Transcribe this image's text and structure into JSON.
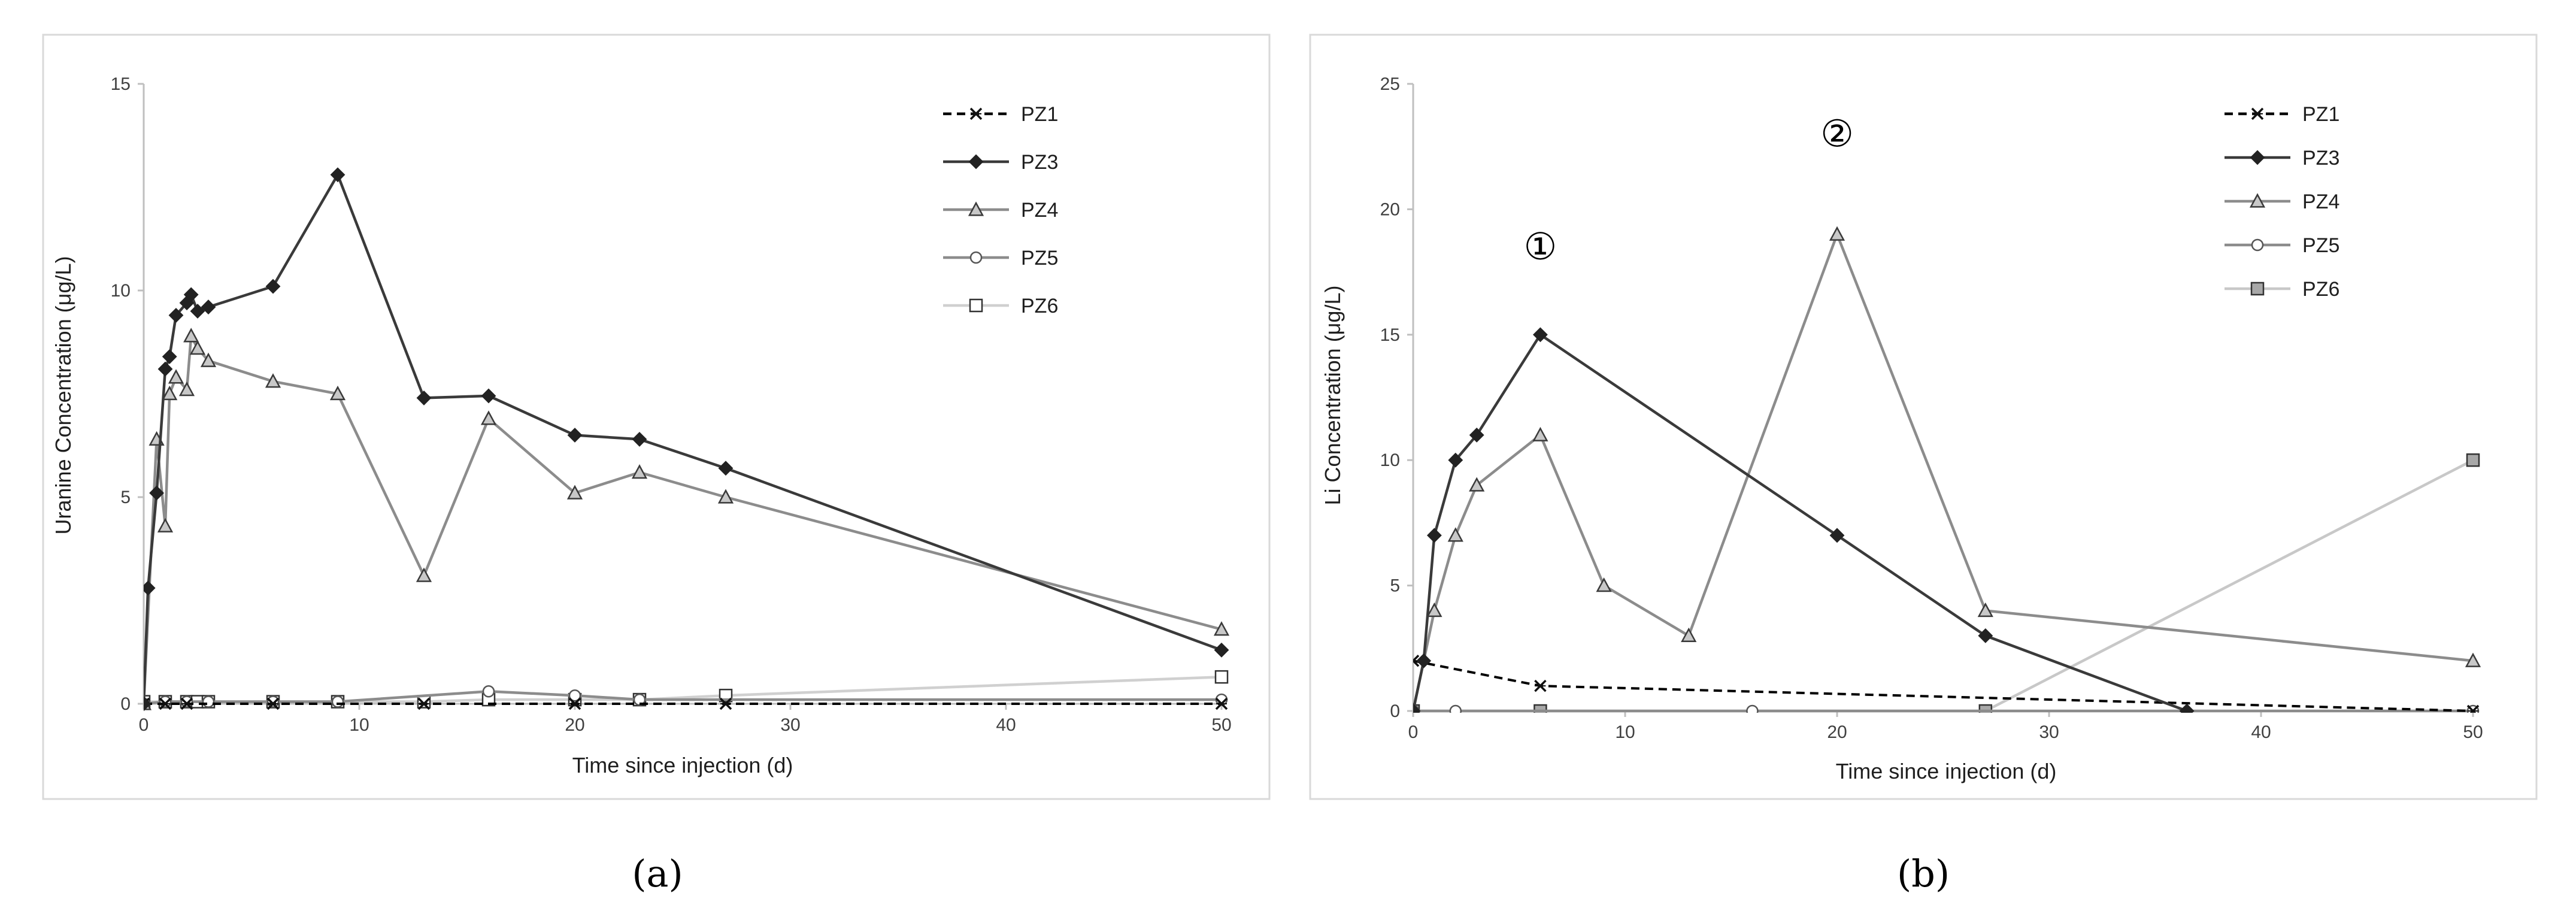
{
  "chart_data": [
    {
      "type": "line",
      "panel": "a",
      "caption": "(a)",
      "xlabel": "Time since injection (d)",
      "ylabel": "Uranine Concentration (μg/L)",
      "xlim": [
        0,
        50
      ],
      "ylim": [
        0,
        15
      ],
      "xticks": [
        "0",
        "10",
        "20",
        "30",
        "40",
        "50"
      ],
      "yticks": [
        "0",
        "5",
        "10",
        "15"
      ],
      "grid": false,
      "legend_position": "top-right",
      "annotations": [],
      "series": [
        {
          "name": "PZ1",
          "color": "#000000",
          "dash": "dashed",
          "marker": "x",
          "x": [
            0,
            1,
            2,
            6,
            13,
            20,
            27,
            50
          ],
          "y": [
            0,
            0,
            0,
            0,
            0,
            0,
            0,
            0
          ]
        },
        {
          "name": "PZ3",
          "color": "#3a3a3a",
          "dash": "solid",
          "marker": "diamond",
          "x": [
            0,
            0.2,
            0.6,
            1,
            1.2,
            1.5,
            2,
            2.2,
            2.5,
            3,
            6,
            9,
            13,
            16,
            20,
            23,
            27,
            50
          ],
          "y": [
            0,
            2.8,
            5.1,
            8.1,
            8.4,
            9.4,
            9.7,
            9.9,
            9.5,
            9.6,
            10.1,
            12.8,
            7.4,
            7.45,
            6.5,
            6.4,
            5.7,
            1.3
          ]
        },
        {
          "name": "PZ4",
          "color": "#8c8c8c",
          "dash": "solid",
          "marker": "triangle",
          "x": [
            0,
            0.6,
            1,
            1.2,
            1.5,
            2,
            2.2,
            2.5,
            3,
            6,
            9,
            13,
            16,
            20,
            23,
            27,
            50
          ],
          "y": [
            0,
            6.4,
            4.3,
            7.5,
            7.9,
            7.6,
            8.9,
            8.6,
            8.3,
            7.8,
            7.5,
            3.1,
            6.9,
            5.1,
            5.6,
            5.0,
            1.8
          ]
        },
        {
          "name": "PZ5",
          "color": "#8c8c8c",
          "dash": "solid",
          "marker": "circle",
          "x": [
            0,
            1,
            2,
            3,
            6,
            9,
            16,
            20,
            23,
            50
          ],
          "y": [
            0,
            0.05,
            0.05,
            0.05,
            0.05,
            0.05,
            0.3,
            0.2,
            0.1,
            0.1
          ]
        },
        {
          "name": "PZ6",
          "color": "#d0d0d0",
          "dash": "solid",
          "marker": "square",
          "x": [
            0,
            1,
            2,
            2.5,
            3,
            6,
            9,
            13,
            16,
            20,
            23,
            27,
            50
          ],
          "y": [
            0.05,
            0.05,
            0.05,
            0.05,
            0.05,
            0.05,
            0.05,
            0.05,
            0.1,
            0.1,
            0.1,
            0.2,
            0.65
          ]
        }
      ]
    },
    {
      "type": "line",
      "panel": "b",
      "caption": "(b)",
      "xlabel": "Time since injection (d)",
      "ylabel": "Li Concentration (μg/L)",
      "xlim": [
        0,
        50
      ],
      "ylim": [
        0,
        25
      ],
      "xticks": [
        "0",
        "10",
        "20",
        "30",
        "40",
        "50"
      ],
      "yticks": [
        "0",
        "5",
        "10",
        "15",
        "20",
        "25"
      ],
      "grid": false,
      "legend_position": "top-right",
      "annotations": [
        {
          "text": "①",
          "x": 6,
          "y": 18
        },
        {
          "text": "②",
          "x": 20,
          "y": 22.5
        }
      ],
      "series": [
        {
          "name": "PZ1",
          "color": "#000000",
          "dash": "dashed",
          "marker": "x",
          "x": [
            0,
            6,
            50
          ],
          "y": [
            2,
            1,
            0
          ]
        },
        {
          "name": "PZ3",
          "color": "#3a3a3a",
          "dash": "solid",
          "marker": "diamond",
          "x": [
            0,
            0.5,
            1,
            2,
            3,
            6,
            20,
            27,
            36.5
          ],
          "y": [
            0,
            2,
            7,
            10,
            11,
            15,
            7,
            3,
            0
          ]
        },
        {
          "name": "PZ4",
          "color": "#8c8c8c",
          "dash": "solid",
          "marker": "triangle",
          "x": [
            0,
            1,
            2,
            3,
            6,
            9,
            13,
            20,
            27,
            50
          ],
          "y": [
            0,
            4,
            7,
            9,
            11,
            5,
            3,
            19,
            4,
            2
          ]
        },
        {
          "name": "PZ5",
          "color": "#8c8c8c",
          "dash": "solid",
          "marker": "circle",
          "x": [
            0,
            2,
            16,
            50
          ],
          "y": [
            0,
            0,
            0,
            0
          ]
        },
        {
          "name": "PZ6",
          "color": "#c8c8c8",
          "dash": "solid",
          "marker": "square-filled",
          "x": [
            0,
            6,
            27,
            50
          ],
          "y": [
            0,
            0,
            0,
            10
          ]
        }
      ]
    }
  ]
}
